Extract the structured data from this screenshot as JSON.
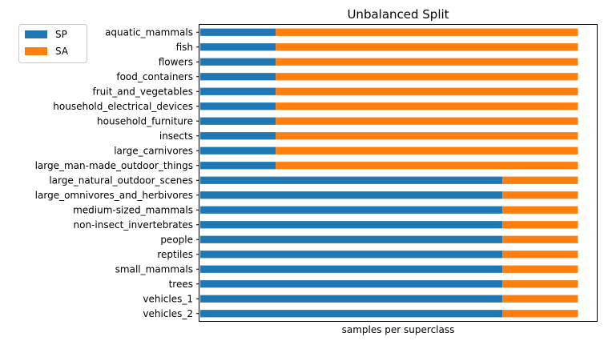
{
  "chart_data": {
    "type": "bar",
    "orientation": "horizontal",
    "stacked": true,
    "title": "Unbalanced Split",
    "xlabel": "samples per superclass",
    "ylabel": "",
    "x_ticks_shown": false,
    "grid": false,
    "legend_position": "top-left",
    "categories": [
      "aquatic_mammals",
      "fish",
      "flowers",
      "food_containers",
      "fruit_and_vegetables",
      "household_electrical_devices",
      "household_furniture",
      "insects",
      "large_carnivores",
      "large_man-made_outdoor_things",
      "large_natural_outdoor_scenes",
      "large_omnivores_and_herbivores",
      "medium-sized_mammals",
      "non-insect_invertebrates",
      "people",
      "reptiles",
      "small_mammals",
      "trees",
      "vehicles_1",
      "vehicles_2"
    ],
    "series": [
      {
        "name": "SP",
        "color": "#1f77b4",
        "values": [
          0.2,
          0.2,
          0.2,
          0.2,
          0.2,
          0.2,
          0.2,
          0.2,
          0.2,
          0.2,
          0.8,
          0.8,
          0.8,
          0.8,
          0.8,
          0.8,
          0.8,
          0.8,
          0.8,
          0.8
        ]
      },
      {
        "name": "SA",
        "color": "#ff7f0e",
        "values": [
          0.8,
          0.8,
          0.8,
          0.8,
          0.8,
          0.8,
          0.8,
          0.8,
          0.8,
          0.8,
          0.2,
          0.2,
          0.2,
          0.2,
          0.2,
          0.2,
          0.2,
          0.2,
          0.2,
          0.2
        ]
      }
    ],
    "xlim": [
      -0.002,
      1.05
    ]
  }
}
